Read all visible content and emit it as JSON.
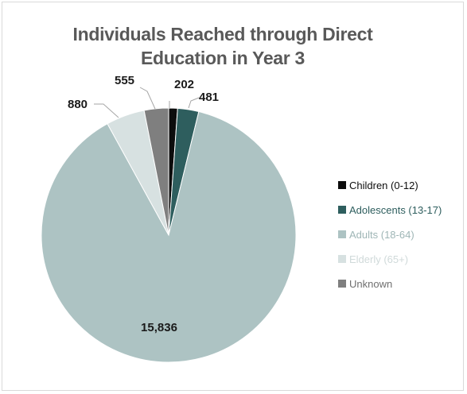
{
  "chart_data": {
    "type": "pie",
    "title_lines": [
      "Individuals Reached through Direct",
      "Education in Year 3"
    ],
    "legend_position": "right",
    "slices": [
      {
        "label": "Children (0-12)",
        "value": 202,
        "value_label": "202",
        "color": "#0d0d0d",
        "legend_text_color": "#0d0d0d"
      },
      {
        "label": "Adolescents (13-17)",
        "value": 481,
        "value_label": "481",
        "color": "#2e5e5e",
        "legend_text_color": "#2e5e5e"
      },
      {
        "label": "Adults (18-64)",
        "value": 15836,
        "value_label": "15,836",
        "color": "#adc3c3",
        "legend_text_color": "#9fb6b6"
      },
      {
        "label": "Elderly (65+)",
        "value": 880,
        "value_label": "880",
        "color": "#d7e1e1",
        "legend_text_color": "#d0dada"
      },
      {
        "label": "Unknown",
        "value": 555,
        "value_label": "555",
        "color": "#7f7f7f",
        "legend_text_color": "#6f6f6f"
      }
    ]
  }
}
